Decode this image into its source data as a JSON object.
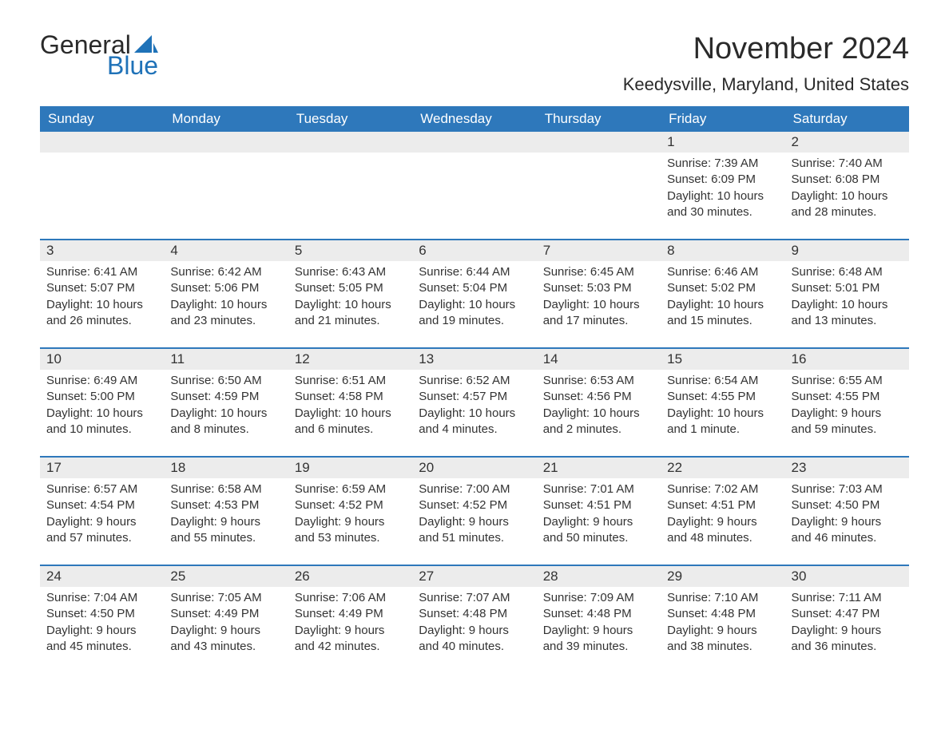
{
  "logo": {
    "text1": "General",
    "text2": "Blue",
    "accent": "#1f72b8"
  },
  "title": "November 2024",
  "location": "Keedysville, Maryland, United States",
  "colors": {
    "header_bg": "#2e78bb",
    "header_fg": "#ffffff",
    "row_divider": "#2e78bb",
    "daynum_bg": "#ececec",
    "page_bg": "#ffffff",
    "text": "#333333"
  },
  "day_headers": [
    "Sunday",
    "Monday",
    "Tuesday",
    "Wednesday",
    "Thursday",
    "Friday",
    "Saturday"
  ],
  "weeks": [
    [
      null,
      null,
      null,
      null,
      null,
      {
        "n": "1",
        "sunrise": "Sunrise: 7:39 AM",
        "sunset": "Sunset: 6:09 PM",
        "daylight": "Daylight: 10 hours and 30 minutes."
      },
      {
        "n": "2",
        "sunrise": "Sunrise: 7:40 AM",
        "sunset": "Sunset: 6:08 PM",
        "daylight": "Daylight: 10 hours and 28 minutes."
      }
    ],
    [
      {
        "n": "3",
        "sunrise": "Sunrise: 6:41 AM",
        "sunset": "Sunset: 5:07 PM",
        "daylight": "Daylight: 10 hours and 26 minutes."
      },
      {
        "n": "4",
        "sunrise": "Sunrise: 6:42 AM",
        "sunset": "Sunset: 5:06 PM",
        "daylight": "Daylight: 10 hours and 23 minutes."
      },
      {
        "n": "5",
        "sunrise": "Sunrise: 6:43 AM",
        "sunset": "Sunset: 5:05 PM",
        "daylight": "Daylight: 10 hours and 21 minutes."
      },
      {
        "n": "6",
        "sunrise": "Sunrise: 6:44 AM",
        "sunset": "Sunset: 5:04 PM",
        "daylight": "Daylight: 10 hours and 19 minutes."
      },
      {
        "n": "7",
        "sunrise": "Sunrise: 6:45 AM",
        "sunset": "Sunset: 5:03 PM",
        "daylight": "Daylight: 10 hours and 17 minutes."
      },
      {
        "n": "8",
        "sunrise": "Sunrise: 6:46 AM",
        "sunset": "Sunset: 5:02 PM",
        "daylight": "Daylight: 10 hours and 15 minutes."
      },
      {
        "n": "9",
        "sunrise": "Sunrise: 6:48 AM",
        "sunset": "Sunset: 5:01 PM",
        "daylight": "Daylight: 10 hours and 13 minutes."
      }
    ],
    [
      {
        "n": "10",
        "sunrise": "Sunrise: 6:49 AM",
        "sunset": "Sunset: 5:00 PM",
        "daylight": "Daylight: 10 hours and 10 minutes."
      },
      {
        "n": "11",
        "sunrise": "Sunrise: 6:50 AM",
        "sunset": "Sunset: 4:59 PM",
        "daylight": "Daylight: 10 hours and 8 minutes."
      },
      {
        "n": "12",
        "sunrise": "Sunrise: 6:51 AM",
        "sunset": "Sunset: 4:58 PM",
        "daylight": "Daylight: 10 hours and 6 minutes."
      },
      {
        "n": "13",
        "sunrise": "Sunrise: 6:52 AM",
        "sunset": "Sunset: 4:57 PM",
        "daylight": "Daylight: 10 hours and 4 minutes."
      },
      {
        "n": "14",
        "sunrise": "Sunrise: 6:53 AM",
        "sunset": "Sunset: 4:56 PM",
        "daylight": "Daylight: 10 hours and 2 minutes."
      },
      {
        "n": "15",
        "sunrise": "Sunrise: 6:54 AM",
        "sunset": "Sunset: 4:55 PM",
        "daylight": "Daylight: 10 hours and 1 minute."
      },
      {
        "n": "16",
        "sunrise": "Sunrise: 6:55 AM",
        "sunset": "Sunset: 4:55 PM",
        "daylight": "Daylight: 9 hours and 59 minutes."
      }
    ],
    [
      {
        "n": "17",
        "sunrise": "Sunrise: 6:57 AM",
        "sunset": "Sunset: 4:54 PM",
        "daylight": "Daylight: 9 hours and 57 minutes."
      },
      {
        "n": "18",
        "sunrise": "Sunrise: 6:58 AM",
        "sunset": "Sunset: 4:53 PM",
        "daylight": "Daylight: 9 hours and 55 minutes."
      },
      {
        "n": "19",
        "sunrise": "Sunrise: 6:59 AM",
        "sunset": "Sunset: 4:52 PM",
        "daylight": "Daylight: 9 hours and 53 minutes."
      },
      {
        "n": "20",
        "sunrise": "Sunrise: 7:00 AM",
        "sunset": "Sunset: 4:52 PM",
        "daylight": "Daylight: 9 hours and 51 minutes."
      },
      {
        "n": "21",
        "sunrise": "Sunrise: 7:01 AM",
        "sunset": "Sunset: 4:51 PM",
        "daylight": "Daylight: 9 hours and 50 minutes."
      },
      {
        "n": "22",
        "sunrise": "Sunrise: 7:02 AM",
        "sunset": "Sunset: 4:51 PM",
        "daylight": "Daylight: 9 hours and 48 minutes."
      },
      {
        "n": "23",
        "sunrise": "Sunrise: 7:03 AM",
        "sunset": "Sunset: 4:50 PM",
        "daylight": "Daylight: 9 hours and 46 minutes."
      }
    ],
    [
      {
        "n": "24",
        "sunrise": "Sunrise: 7:04 AM",
        "sunset": "Sunset: 4:50 PM",
        "daylight": "Daylight: 9 hours and 45 minutes."
      },
      {
        "n": "25",
        "sunrise": "Sunrise: 7:05 AM",
        "sunset": "Sunset: 4:49 PM",
        "daylight": "Daylight: 9 hours and 43 minutes."
      },
      {
        "n": "26",
        "sunrise": "Sunrise: 7:06 AM",
        "sunset": "Sunset: 4:49 PM",
        "daylight": "Daylight: 9 hours and 42 minutes."
      },
      {
        "n": "27",
        "sunrise": "Sunrise: 7:07 AM",
        "sunset": "Sunset: 4:48 PM",
        "daylight": "Daylight: 9 hours and 40 minutes."
      },
      {
        "n": "28",
        "sunrise": "Sunrise: 7:09 AM",
        "sunset": "Sunset: 4:48 PM",
        "daylight": "Daylight: 9 hours and 39 minutes."
      },
      {
        "n": "29",
        "sunrise": "Sunrise: 7:10 AM",
        "sunset": "Sunset: 4:48 PM",
        "daylight": "Daylight: 9 hours and 38 minutes."
      },
      {
        "n": "30",
        "sunrise": "Sunrise: 7:11 AM",
        "sunset": "Sunset: 4:47 PM",
        "daylight": "Daylight: 9 hours and 36 minutes."
      }
    ]
  ]
}
